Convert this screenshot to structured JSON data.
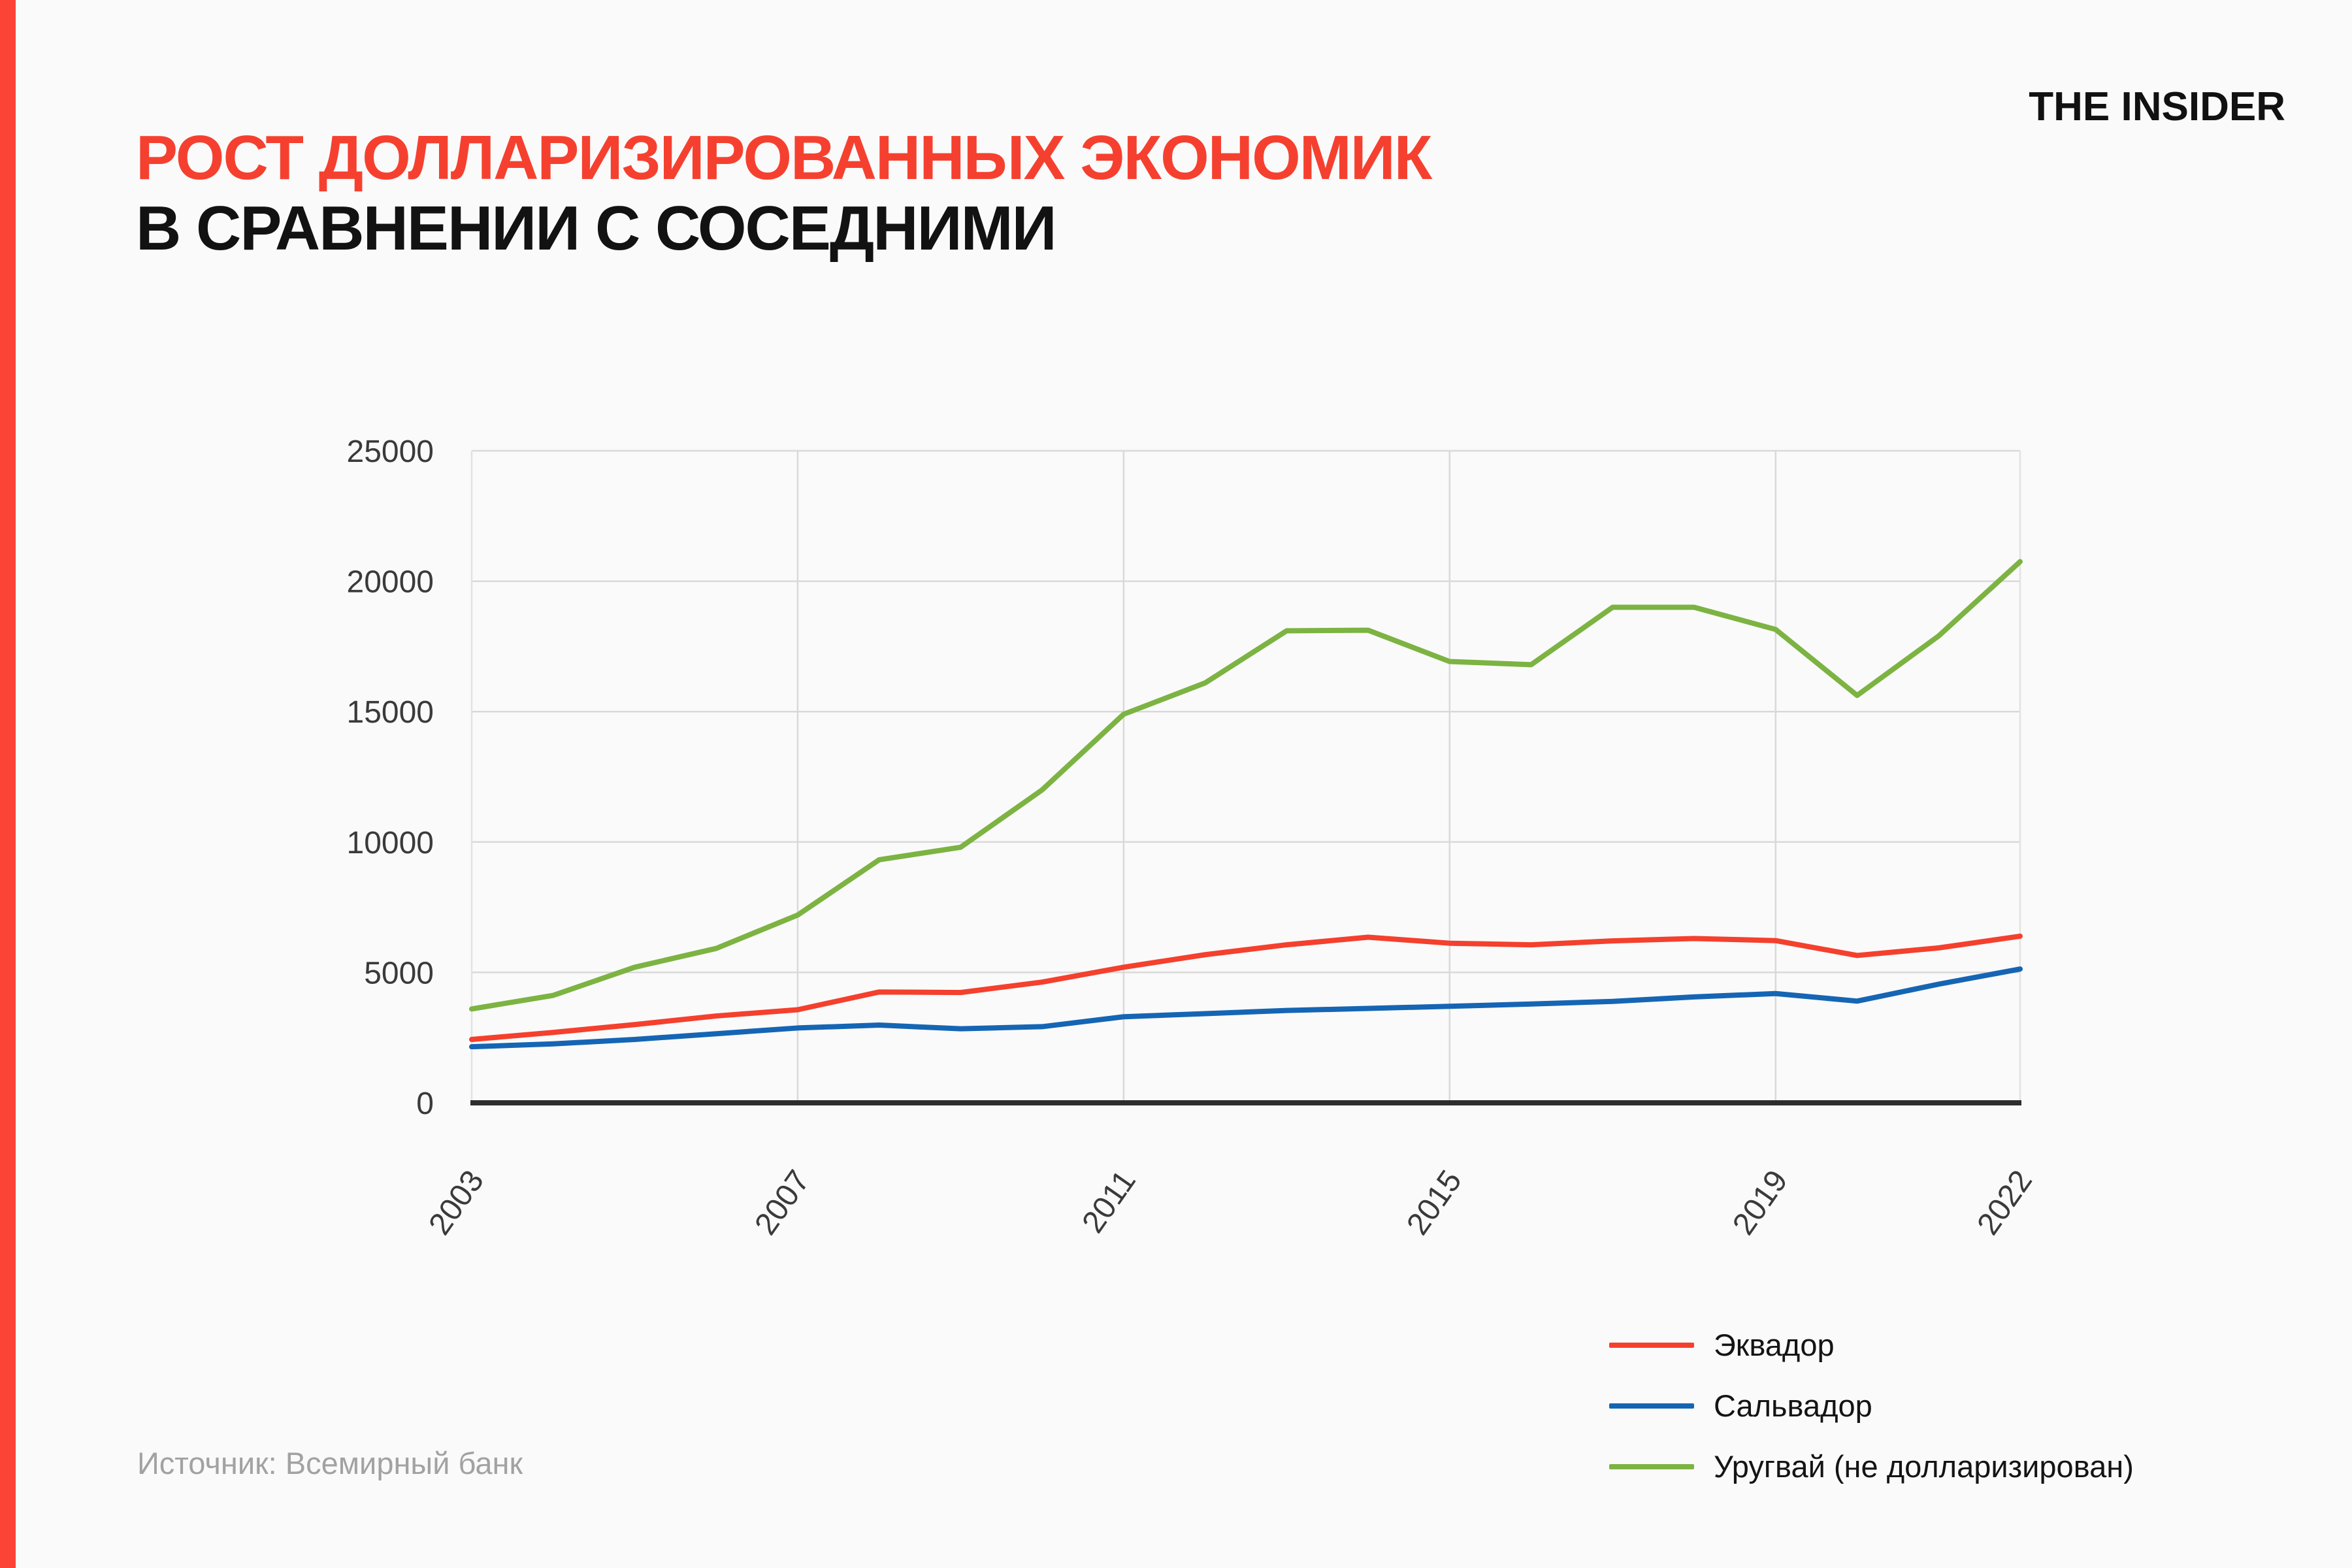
{
  "page": {
    "background": "#fafafa",
    "accent_bar_color": "#fb4336"
  },
  "header": {
    "title_line1": "РОСТ ДОЛЛАРИЗИРОВАННЫХ ЭКОНОМИК",
    "title_line2": "В СРАВНЕНИИ С СОСЕДНИМИ",
    "title_color": "#f6402f",
    "logo": "THE INSIDER"
  },
  "source": "Источник: Всемирный банк",
  "chart_data": {
    "type": "line",
    "x": [
      2003,
      2004,
      2005,
      2006,
      2007,
      2008,
      2009,
      2010,
      2011,
      2012,
      2013,
      2014,
      2015,
      2016,
      2017,
      2018,
      2019,
      2020,
      2021,
      2022
    ],
    "x_ticks": [
      2003,
      2007,
      2011,
      2015,
      2019,
      2022
    ],
    "x_tick_labels": [
      "2003",
      "2007",
      "2011",
      "2015",
      "2019",
      "2022"
    ],
    "y_ticks": [
      0,
      5000,
      10000,
      15000,
      20000,
      25000
    ],
    "y_tick_labels": [
      "0",
      "5000",
      "10000",
      "15000",
      "20000",
      "25000"
    ],
    "ylim": [
      0,
      25000
    ],
    "grid": true,
    "legend_position": "bottom-right",
    "axis_color": "#2d2d2d",
    "gridline_color": "#d9d9d9",
    "tick_label_color": "#3a3a3a",
    "series": [
      {
        "name": "Эквадор",
        "color": "#f4402d",
        "values": [
          2430,
          2700,
          3000,
          3330,
          3570,
          4250,
          4230,
          4630,
          5200,
          5680,
          6060,
          6350,
          6120,
          6060,
          6210,
          6300,
          6220,
          5650,
          5940,
          6390
        ]
      },
      {
        "name": "Сальвадор",
        "color": "#1565b4",
        "values": [
          2150,
          2260,
          2430,
          2650,
          2870,
          2980,
          2840,
          2920,
          3300,
          3420,
          3540,
          3620,
          3700,
          3790,
          3890,
          4060,
          4190,
          3900,
          4550,
          5130
        ]
      },
      {
        "name": "Уругвай (не долларизирован)",
        "color": "#7cb342",
        "values": [
          3600,
          4120,
          5200,
          5920,
          7200,
          9320,
          9800,
          12000,
          14900,
          16100,
          18100,
          18120,
          16920,
          16800,
          19000,
          19000,
          18150,
          15620,
          17900,
          20750
        ]
      }
    ]
  }
}
